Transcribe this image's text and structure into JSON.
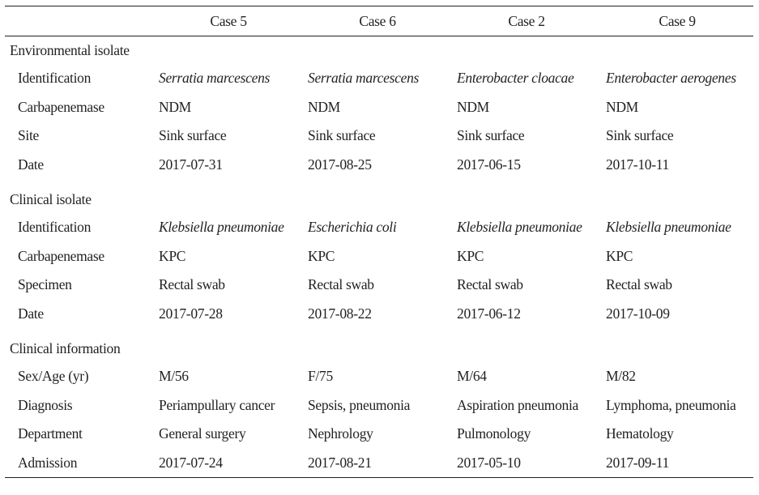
{
  "table": {
    "header": [
      "",
      "Case 5",
      "Case 6",
      "Case 2",
      "Case 9"
    ],
    "sections": [
      {
        "title": "Environmental isolate",
        "rows": [
          {
            "label": "Identification",
            "italic": true,
            "values": [
              "Serratia marcescens",
              "Serratia marcescens",
              "Enterobacter cloacae",
              "Enterobacter aerogenes"
            ]
          },
          {
            "label": "Carbapenemase",
            "italic": false,
            "values": [
              "NDM",
              "NDM",
              "NDM",
              "NDM"
            ]
          },
          {
            "label": "Site",
            "italic": false,
            "values": [
              "Sink surface",
              "Sink surface",
              "Sink surface",
              "Sink surface"
            ]
          },
          {
            "label": "Date",
            "italic": false,
            "values": [
              "2017-07-31",
              "2017-08-25",
              "2017-06-15",
              "2017-10-11"
            ]
          }
        ]
      },
      {
        "title": "Clinical isolate",
        "rows": [
          {
            "label": "Identification",
            "italic": true,
            "values": [
              "Klebsiella pneumoniae",
              "Escherichia coli",
              "Klebsiella pneumoniae",
              "Klebsiella pneumoniae"
            ]
          },
          {
            "label": "Carbapenemase",
            "italic": false,
            "values": [
              "KPC",
              "KPC",
              "KPC",
              "KPC"
            ]
          },
          {
            "label": "Specimen",
            "italic": false,
            "values": [
              "Rectal swab",
              "Rectal swab",
              "Rectal swab",
              "Rectal swab"
            ]
          },
          {
            "label": "Date",
            "italic": false,
            "values": [
              "2017-07-28",
              "2017-08-22",
              "2017-06-12",
              "2017-10-09"
            ]
          }
        ]
      },
      {
        "title": "Clinical information",
        "rows": [
          {
            "label": "Sex/Age (yr)",
            "italic": false,
            "values": [
              "M/56",
              "F/75",
              "M/64",
              "M/82"
            ]
          },
          {
            "label": "Diagnosis",
            "italic": false,
            "values": [
              "Periampullary cancer",
              "Sepsis, pneumonia",
              "Aspiration pneumonia",
              "Lymphoma, pneumonia"
            ]
          },
          {
            "label": "Department",
            "italic": false,
            "values": [
              "General surgery",
              "Nephrology",
              "Pulmonology",
              "Hematology"
            ]
          },
          {
            "label": "Admission",
            "italic": false,
            "values": [
              "2017-07-24",
              "2017-08-21",
              "2017-05-10",
              "2017-09-11"
            ]
          }
        ]
      }
    ]
  }
}
